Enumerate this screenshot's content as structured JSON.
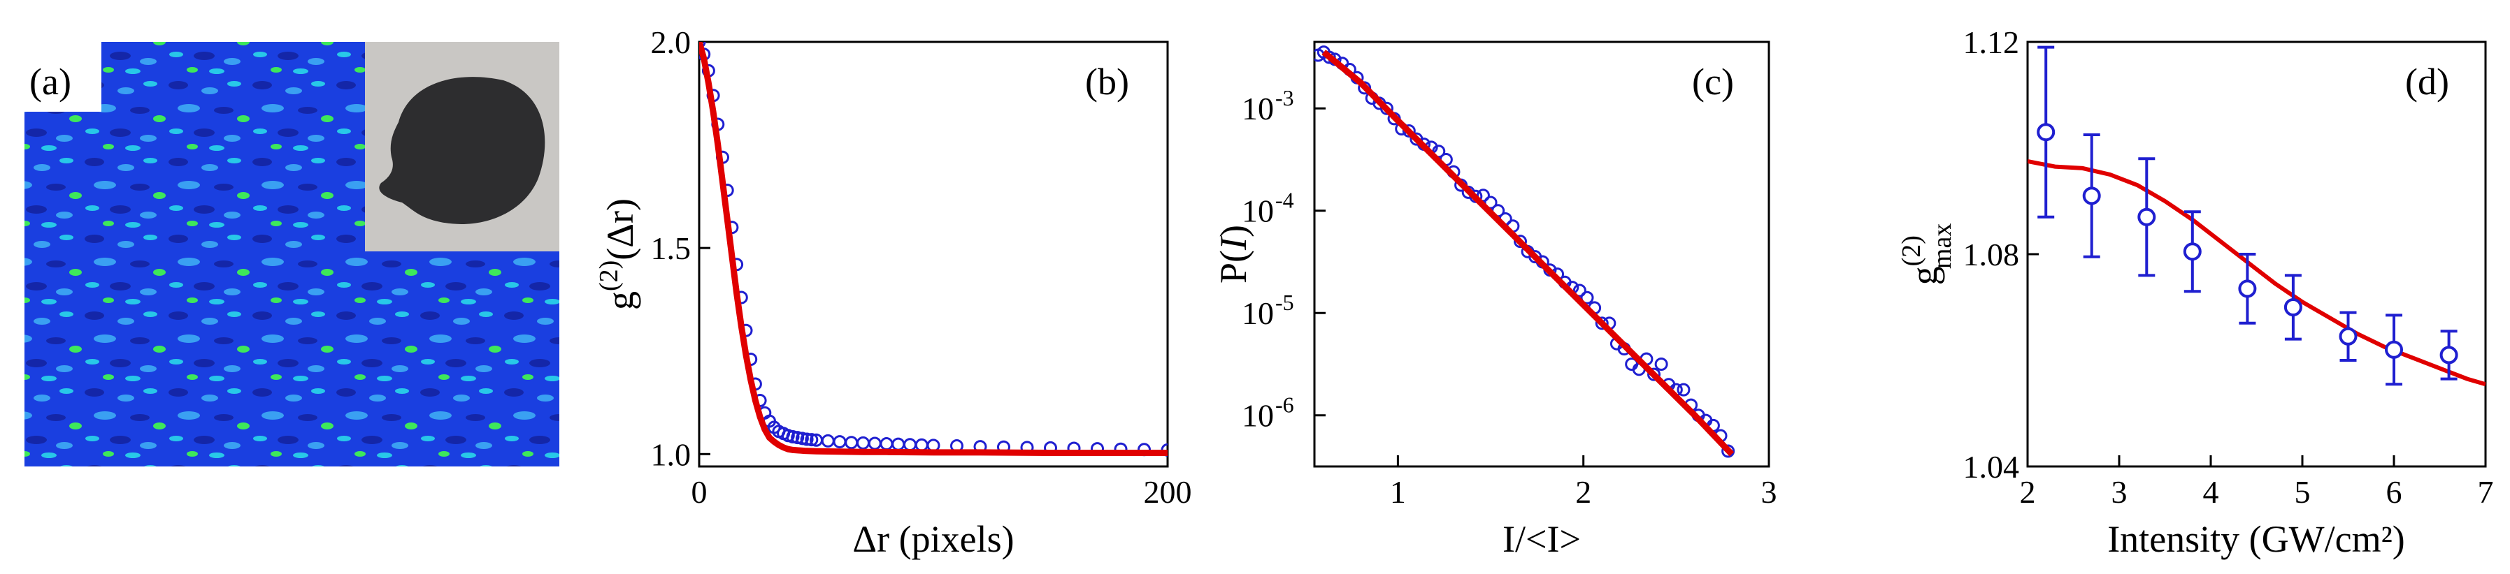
{
  "chart_data": [
    {
      "panel_label": "(a)",
      "type": "image",
      "description_of_marks": "speckle intensity map with inset photo of sample"
    },
    {
      "panel_label": "(b)",
      "type": "scatter",
      "xlabel": "Δr (pixels)",
      "ylabel_main": "g",
      "ylabel_sup": "(2)",
      "ylabel_tail": "(Δr)",
      "xlim": [
        0,
        200
      ],
      "ylim": [
        0.97,
        2.0
      ],
      "xticks": [
        0,
        200
      ],
      "yticks": [
        1.0,
        1.5,
        2.0
      ],
      "xtick_labels": [
        "0",
        "200"
      ],
      "ytick_labels": [
        "1.0",
        "1.5",
        "2.0"
      ],
      "series": [
        {
          "kind": "points",
          "color": "#1f1fd0",
          "x": [
            0,
            2,
            4,
            6,
            8,
            10,
            12,
            14,
            16,
            18,
            20,
            22,
            24,
            26,
            28,
            30,
            32,
            34,
            36,
            38,
            40,
            42,
            44,
            46,
            48,
            50,
            55,
            60,
            65,
            70,
            75,
            80,
            85,
            90,
            95,
            100,
            110,
            120,
            130,
            140,
            150,
            160,
            170,
            180,
            190,
            200
          ],
          "y": [
            2.0,
            1.97,
            1.93,
            1.87,
            1.8,
            1.72,
            1.64,
            1.55,
            1.46,
            1.38,
            1.3,
            1.23,
            1.17,
            1.13,
            1.1,
            1.08,
            1.065,
            1.055,
            1.05,
            1.045,
            1.042,
            1.04,
            1.038,
            1.036,
            1.035,
            1.034,
            1.032,
            1.03,
            1.028,
            1.027,
            1.026,
            1.025,
            1.024,
            1.023,
            1.022,
            1.021,
            1.02,
            1.018,
            1.017,
            1.016,
            1.015,
            1.014,
            1.013,
            1.012,
            1.011,
            1.01
          ]
        },
        {
          "kind": "fit_line",
          "color": "#e00000",
          "x": [
            0,
            2,
            4,
            6,
            8,
            10,
            12,
            14,
            16,
            18,
            20,
            22,
            24,
            26,
            28,
            30,
            32,
            34,
            36,
            38,
            40,
            45,
            50,
            60,
            70,
            80,
            100,
            120,
            150,
            200
          ],
          "y": [
            2.0,
            1.96,
            1.9,
            1.83,
            1.75,
            1.66,
            1.57,
            1.48,
            1.39,
            1.31,
            1.24,
            1.18,
            1.13,
            1.09,
            1.06,
            1.04,
            1.03,
            1.022,
            1.016,
            1.012,
            1.01,
            1.008,
            1.007,
            1.006,
            1.005,
            1.005,
            1.004,
            1.004,
            1.003,
            1.003
          ]
        }
      ]
    },
    {
      "panel_label": "(c)",
      "type": "scatter",
      "xlabel": "I/<I>",
      "ylabel_prefix": "P(",
      "ylabel_italic": "I",
      "ylabel_suffix": ")",
      "yscale": "log",
      "xlim": [
        0.55,
        3.0
      ],
      "ylim_log10": [
        -6.5,
        -2.35
      ],
      "xticks": [
        1,
        2,
        3
      ],
      "xtick_labels": [
        "1",
        "2",
        "3"
      ],
      "ytick_exponents": [
        -3,
        -4,
        -5,
        -6
      ],
      "ytick_base": "10",
      "ytick_sups": [
        "-3",
        "-4",
        "-5",
        "-6"
      ],
      "series": [
        {
          "kind": "points",
          "color": "#1f1fd0",
          "x": [
            0.57,
            0.6,
            0.63,
            0.66,
            0.7,
            0.74,
            0.78,
            0.82,
            0.86,
            0.9,
            0.94,
            0.98,
            1.02,
            1.06,
            1.1,
            1.14,
            1.18,
            1.22,
            1.26,
            1.3,
            1.34,
            1.38,
            1.42,
            1.46,
            1.5,
            1.54,
            1.58,
            1.62,
            1.66,
            1.7,
            1.74,
            1.78,
            1.82,
            1.86,
            1.9,
            1.94,
            1.98,
            2.02,
            2.06,
            2.1,
            2.14,
            2.18,
            2.22,
            2.26,
            2.3,
            2.34,
            2.38,
            2.42,
            2.46,
            2.5,
            2.54,
            2.58,
            2.62,
            2.66,
            2.7,
            2.74,
            2.78
          ],
          "y_log10": [
            -2.48,
            -2.45,
            -2.5,
            -2.52,
            -2.56,
            -2.62,
            -2.7,
            -2.8,
            -2.9,
            -2.95,
            -3.0,
            -3.1,
            -3.2,
            -3.22,
            -3.3,
            -3.35,
            -3.38,
            -3.42,
            -3.5,
            -3.62,
            -3.75,
            -3.82,
            -3.86,
            -3.85,
            -3.92,
            -4.0,
            -4.08,
            -4.15,
            -4.3,
            -4.4,
            -4.45,
            -4.5,
            -4.58,
            -4.62,
            -4.7,
            -4.75,
            -4.78,
            -4.85,
            -4.95,
            -5.1,
            -5.1,
            -5.3,
            -5.35,
            -5.5,
            -5.55,
            -5.45,
            -5.6,
            -5.5,
            -5.7,
            -5.75,
            -5.75,
            -5.9,
            -6.0,
            -6.05,
            -6.1,
            -6.2,
            -6.35
          ]
        },
        {
          "kind": "fit_line",
          "color": "#e00000",
          "x": [
            0.6,
            0.8,
            1.0,
            1.2,
            1.4,
            1.6,
            1.8,
            2.0,
            2.2,
            2.4,
            2.6,
            2.8
          ],
          "y_log10": [
            -2.45,
            -2.75,
            -3.12,
            -3.48,
            -3.84,
            -4.2,
            -4.56,
            -4.92,
            -5.28,
            -5.64,
            -6.0,
            -6.38
          ]
        }
      ]
    },
    {
      "panel_label": "(d)",
      "type": "scatter",
      "xlabel": "Intensity (GW/cm²)",
      "ylabel_main": "g",
      "ylabel_sup": "(2)",
      "ylabel_sub": "max",
      "xlim": [
        2,
        7
      ],
      "ylim": [
        1.04,
        1.12
      ],
      "xticks": [
        2,
        3,
        4,
        5,
        6,
        7
      ],
      "xtick_labels": [
        "2",
        "3",
        "4",
        "5",
        "6",
        "7"
      ],
      "yticks": [
        1.04,
        1.08,
        1.12
      ],
      "ytick_labels": [
        "1.04",
        "1.08",
        "1.12"
      ],
      "series": [
        {
          "kind": "points_with_errorbars",
          "color": "#1f1fd0",
          "x": [
            2.2,
            2.7,
            3.3,
            3.8,
            4.4,
            4.9,
            5.5,
            6.0,
            6.6
          ],
          "y": [
            1.103,
            1.091,
            1.087,
            1.0805,
            1.0735,
            1.07,
            1.0645,
            1.062,
            1.061
          ],
          "err": [
            0.016,
            0.0115,
            0.011,
            0.0075,
            0.0065,
            0.006,
            0.0045,
            0.0065,
            0.0045
          ]
        },
        {
          "kind": "fit_line",
          "color": "#e00000",
          "x": [
            2.0,
            2.3,
            2.6,
            2.9,
            3.2,
            3.5,
            3.8,
            4.1,
            4.4,
            4.7,
            5.0,
            5.3,
            5.6,
            5.9,
            6.2,
            6.5,
            6.8,
            7.0
          ],
          "y": [
            1.0975,
            1.0965,
            1.0962,
            1.095,
            1.093,
            1.09,
            1.0865,
            1.0825,
            1.0785,
            1.0745,
            1.071,
            1.068,
            1.065,
            1.0625,
            1.0605,
            1.0585,
            1.0565,
            1.0555
          ]
        }
      ]
    }
  ],
  "panel_a": {
    "colors": {
      "background": "#1a3fe0",
      "dark": "#1426a8",
      "light": "#3aa0f2",
      "cyan": "#28c8e8",
      "green": "#3ee85a",
      "inset_bg": "#c9c7c4",
      "inset_blob": "#2d2d2f"
    }
  }
}
